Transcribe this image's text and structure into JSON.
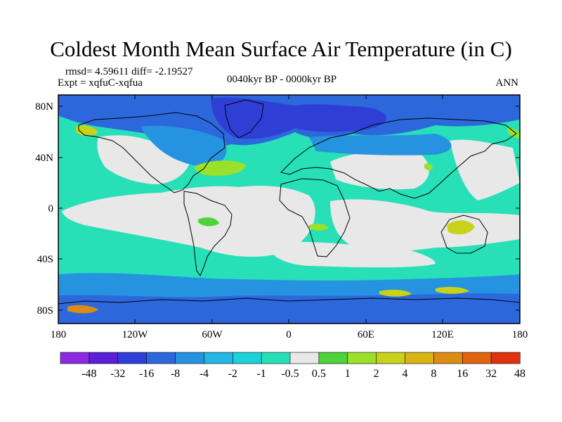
{
  "title": "Coldest Month Mean Surface Air Temperature (in C)",
  "stats": "rmsd= 4.59611 diff= -2.19527",
  "experiment": "Expt = xqfuC-xqfua",
  "period": "0040kyr BP - 0000kyr BP",
  "season": "ANN",
  "lat_ticks": [
    "80N",
    "40N",
    "0",
    "40S",
    "80S"
  ],
  "lon_ticks": [
    "180",
    "120W",
    "60W",
    "0",
    "60E",
    "120E",
    "180"
  ],
  "colorbar": {
    "labels": [
      "-48",
      "-32",
      "-16",
      "-8",
      "-4",
      "-2",
      "-1",
      "-0.5",
      "0.5",
      "1",
      "2",
      "4",
      "8",
      "16",
      "32",
      "48"
    ],
    "colors": [
      "#8a2be2",
      "#5a1fd6",
      "#2f3fd6",
      "#2c68dc",
      "#2693e0",
      "#25b6e3",
      "#1ad2d8",
      "#27e0b8",
      "#e8e8e8",
      "#4fd23a",
      "#9be02a",
      "#c9d21a",
      "#d8b415",
      "#dc8c12",
      "#e0640f",
      "#e0320c"
    ]
  }
}
